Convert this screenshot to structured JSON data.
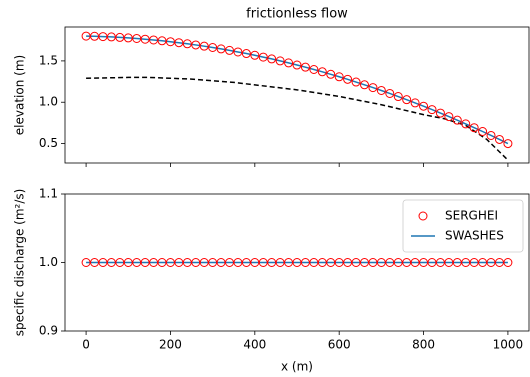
{
  "chart_data": [
    {
      "type": "line",
      "title": "frictionless flow",
      "ylabel": "elevation (m)",
      "x": [
        0,
        20,
        40,
        60,
        80,
        100,
        120,
        140,
        160,
        180,
        200,
        220,
        240,
        260,
        280,
        300,
        320,
        340,
        360,
        380,
        400,
        420,
        440,
        460,
        480,
        500,
        520,
        540,
        560,
        580,
        600,
        620,
        640,
        660,
        680,
        700,
        720,
        740,
        760,
        780,
        800,
        820,
        840,
        860,
        880,
        900,
        920,
        940,
        960,
        980,
        1000
      ],
      "xlim": [
        -50,
        1050
      ],
      "xticks": [
        0,
        200,
        400,
        600,
        800,
        1000
      ],
      "ylim": [
        0.265,
        1.91
      ],
      "yticks": [
        {
          "value": 0.5,
          "label": "0.5"
        },
        {
          "value": 1.0,
          "label": "1.0"
        },
        {
          "value": 1.5,
          "label": "1.5"
        }
      ],
      "series": [
        {
          "color": "#000000",
          "style": "dashed",
          "x": [
            0,
            50,
            100,
            150,
            200,
            250,
            300,
            350,
            400,
            450,
            500,
            550,
            600,
            650,
            700,
            750,
            800,
            850,
            900,
            950,
            1000
          ],
          "values": [
            1.29,
            1.295,
            1.3,
            1.3,
            1.29,
            1.28,
            1.26,
            1.24,
            1.21,
            1.18,
            1.15,
            1.11,
            1.07,
            1.02,
            0.97,
            0.91,
            0.85,
            0.8,
            0.72,
            0.55,
            0.3
          ]
        },
        {
          "color": "#1f77b4",
          "style": "solid",
          "values": [
            1.8,
            1.798,
            1.794,
            1.79,
            1.784,
            1.778,
            1.771,
            1.762,
            1.753,
            1.743,
            1.732,
            1.72,
            1.707,
            1.693,
            1.678,
            1.662,
            1.645,
            1.627,
            1.608,
            1.589,
            1.568,
            1.546,
            1.524,
            1.5,
            1.476,
            1.45,
            1.424,
            1.396,
            1.368,
            1.338,
            1.308,
            1.277,
            1.244,
            1.211,
            1.177,
            1.142,
            1.106,
            1.069,
            1.031,
            0.992,
            0.952,
            0.911,
            0.869,
            0.826,
            0.783,
            0.738,
            0.692,
            0.646,
            0.598,
            0.55,
            0.5
          ]
        },
        {
          "color": "#ff0000",
          "style": "circle",
          "values": [
            1.8,
            1.798,
            1.794,
            1.79,
            1.784,
            1.778,
            1.771,
            1.762,
            1.753,
            1.743,
            1.732,
            1.72,
            1.707,
            1.693,
            1.678,
            1.662,
            1.645,
            1.627,
            1.608,
            1.589,
            1.568,
            1.546,
            1.524,
            1.5,
            1.476,
            1.45,
            1.424,
            1.396,
            1.368,
            1.338,
            1.308,
            1.277,
            1.244,
            1.211,
            1.177,
            1.142,
            1.106,
            1.069,
            1.031,
            0.992,
            0.952,
            0.911,
            0.869,
            0.826,
            0.783,
            0.738,
            0.692,
            0.646,
            0.598,
            0.55,
            0.5
          ]
        }
      ]
    },
    {
      "type": "line",
      "ylabel": "specific discharge (m²/s)",
      "xlabel": "x (m)",
      "legend": "upper right",
      "x": [
        0,
        20,
        40,
        60,
        80,
        100,
        120,
        140,
        160,
        180,
        200,
        220,
        240,
        260,
        280,
        300,
        320,
        340,
        360,
        380,
        400,
        420,
        440,
        460,
        480,
        500,
        520,
        540,
        560,
        580,
        600,
        620,
        640,
        660,
        680,
        700,
        720,
        740,
        760,
        780,
        800,
        820,
        840,
        860,
        880,
        900,
        920,
        940,
        960,
        980,
        1000
      ],
      "xlim": [
        -50,
        1050
      ],
      "xticks": [
        0,
        200,
        400,
        600,
        800,
        1000
      ],
      "ylim": [
        0.9,
        1.1
      ],
      "yticks": [
        {
          "value": 0.9,
          "label": "0.9"
        },
        {
          "value": 1.0,
          "label": "1.0"
        },
        {
          "value": 1.1,
          "label": "1.1"
        }
      ],
      "series": [
        {
          "name": "SWASHES",
          "color": "#1f77b4",
          "style": "solid",
          "values": [
            1,
            1,
            1,
            1,
            1,
            1,
            1,
            1,
            1,
            1,
            1,
            1,
            1,
            1,
            1,
            1,
            1,
            1,
            1,
            1,
            1,
            1,
            1,
            1,
            1,
            1,
            1,
            1,
            1,
            1,
            1,
            1,
            1,
            1,
            1,
            1,
            1,
            1,
            1,
            1,
            1,
            1,
            1,
            1,
            1,
            1,
            1,
            1,
            1,
            1,
            1
          ]
        },
        {
          "name": "SERGHEI",
          "color": "#ff0000",
          "style": "circle",
          "values": [
            1,
            1,
            1,
            1,
            1,
            1,
            1,
            1,
            1,
            1,
            1,
            1,
            1,
            1,
            1,
            1,
            1,
            1,
            1,
            1,
            1,
            1,
            1,
            1,
            1,
            1,
            1,
            1,
            1,
            1,
            1,
            1,
            1,
            1,
            1,
            1,
            1,
            1,
            1,
            1,
            1,
            1,
            1,
            1,
            1,
            1,
            1,
            1,
            1,
            1,
            1
          ]
        }
      ]
    }
  ]
}
